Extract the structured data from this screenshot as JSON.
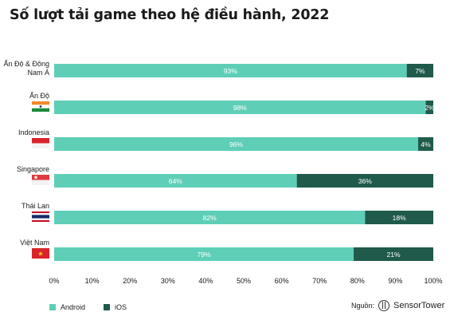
{
  "title": "Số lượt tải game theo hệ điều hành, 2022",
  "legend": {
    "android": "Android",
    "ios": "iOS"
  },
  "source": {
    "label": "Nguồn:",
    "brand": "SensorTower",
    "brand_icon": "sensortower-logo-icon"
  },
  "colors": {
    "android": "#5ecfb6",
    "ios": "#1f5a4b",
    "text": "#1a1a1a",
    "grid": "#cccccc"
  },
  "chart_data": {
    "type": "bar",
    "orientation": "horizontal",
    "stacked": true,
    "categories": [
      {
        "label_lines": [
          "Ấn Độ & Đông",
          "Nam Á"
        ],
        "flag": null
      },
      {
        "label_lines": [
          "Ấn Độ"
        ],
        "flag": "india-flag-icon"
      },
      {
        "label_lines": [
          "Indonesia"
        ],
        "flag": "indonesia-flag-icon"
      },
      {
        "label_lines": [
          "Singapore"
        ],
        "flag": "singapore-flag-icon"
      },
      {
        "label_lines": [
          "Thái Lan"
        ],
        "flag": "thailand-flag-icon"
      },
      {
        "label_lines": [
          "Việt Nam"
        ],
        "flag": "vietnam-flag-icon"
      }
    ],
    "series": [
      {
        "name": "Android",
        "values": [
          93,
          98,
          96,
          64,
          82,
          79
        ],
        "labels": [
          "93%",
          "98%",
          "96%",
          "64%",
          "82%",
          "79%"
        ]
      },
      {
        "name": "iOS",
        "values": [
          7,
          2,
          4,
          36,
          18,
          21
        ],
        "labels": [
          "7%",
          "2%",
          "4%",
          "36%",
          "18%",
          "21%"
        ]
      }
    ],
    "xlim": [
      0,
      100
    ],
    "xticks": [
      "0%",
      "10%",
      "20%",
      "30%",
      "40%",
      "50%",
      "60%",
      "70%",
      "80%",
      "90%",
      "100%"
    ],
    "grid": false,
    "legend_position": "bottom-left"
  }
}
